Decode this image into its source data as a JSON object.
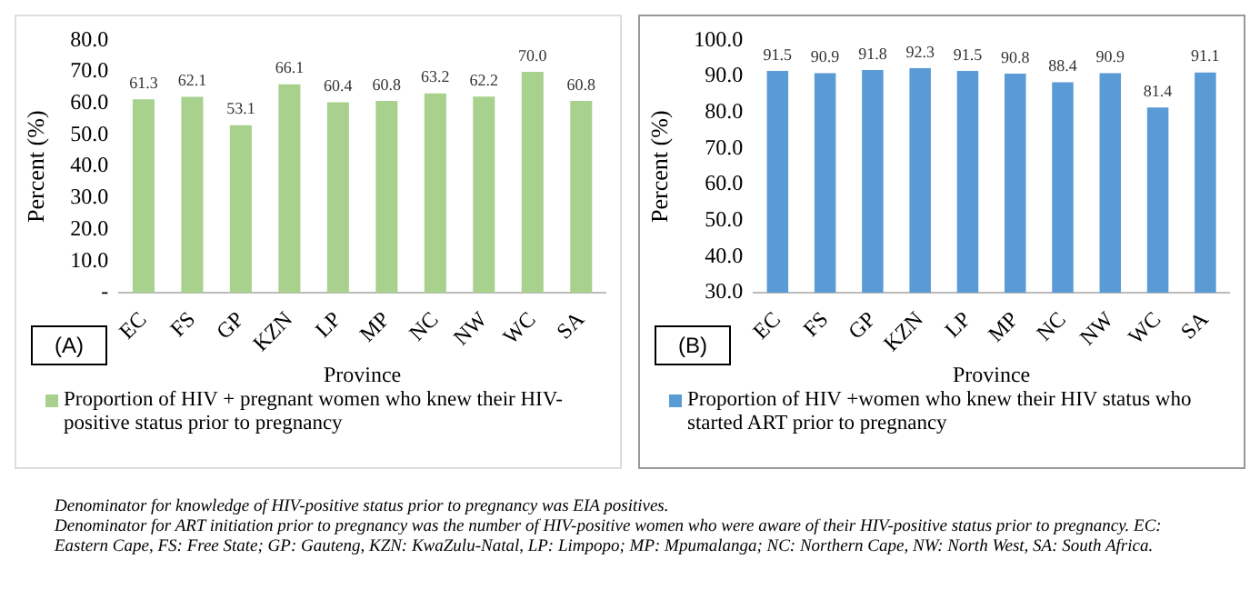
{
  "chart_data": [
    {
      "type": "bar",
      "categories": [
        "EC",
        "FS",
        "GP",
        "KZN",
        "LP",
        "MP",
        "NC",
        "NW",
        "WC",
        "SA"
      ],
      "xlabel": "Province",
      "ylabel": "Percent (%)",
      "series": [
        {
          "name": "Proportion of HIV + pregnant women who knew their HIV-positive  status prior to pregnancy",
          "color": "#a9d18e",
          "values": [
            61.3,
            62.1,
            53.1,
            66.1,
            60.4,
            60.8,
            63.2,
            62.2,
            70.0,
            60.8
          ]
        }
      ],
      "ylim": [
        0,
        80
      ],
      "yticks": [
        {
          "value": 0,
          "label": "-"
        },
        {
          "value": 10,
          "label": "10.0"
        },
        {
          "value": 20,
          "label": "20.0"
        },
        {
          "value": 30,
          "label": "30.0"
        },
        {
          "value": 40,
          "label": "40.0"
        },
        {
          "value": 50,
          "label": "50.0"
        },
        {
          "value": 60,
          "label": "60.0"
        },
        {
          "value": 70,
          "label": "70.0"
        },
        {
          "value": 80,
          "label": "80.0"
        }
      ],
      "value_labels": [
        "61.3",
        "62.1",
        "53.1",
        "66.1",
        "60.4",
        "60.8",
        "63.2",
        "62.2",
        "70.0",
        "60.8"
      ],
      "legend": "bottom",
      "grid": false,
      "annotations": [
        "(A)"
      ]
    },
    {
      "type": "bar",
      "categories": [
        "EC",
        "FS",
        "GP",
        "KZN",
        "LP",
        "MP",
        "NC",
        "NW",
        "WC",
        "SA"
      ],
      "xlabel": "Province",
      "ylabel": "Percent (%)",
      "series": [
        {
          "name": "Proportion of HIV +women who knew their HIV status who started ART  prior to pregnancy",
          "color": "#5b9bd5",
          "values": [
            91.5,
            90.9,
            91.8,
            92.3,
            91.5,
            90.8,
            88.4,
            90.9,
            81.4,
            91.1
          ]
        }
      ],
      "ylim": [
        30,
        100
      ],
      "yticks": [
        {
          "value": 30,
          "label": "30.0"
        },
        {
          "value": 40,
          "label": "40.0"
        },
        {
          "value": 50,
          "label": "50.0"
        },
        {
          "value": 60,
          "label": "60.0"
        },
        {
          "value": 70,
          "label": "70.0"
        },
        {
          "value": 80,
          "label": "80.0"
        },
        {
          "value": 90,
          "label": "90.0"
        },
        {
          "value": 100,
          "label": "100.0"
        }
      ],
      "data_labels": true,
      "legend": "bottom",
      "grid": false,
      "annotations": [
        "(B)",
        "Denominator for knowledge of HIV-positive status prior to pregnancy was EIA positives.",
        "Denominator for ART initiation prior to pregnancy was the number of HIV-positive women who were aware of their HIV-positive status prior to pregnancy.  EC: Eastern Cape, FS: Free State; GP: Gauteng, KZN: KwaZulu-Natal,   LP: Limpopo; MP: Mpumalanga; NC: Northern Cape, NW: North West, SA: South Africa."
      ]
    }
  ]
}
